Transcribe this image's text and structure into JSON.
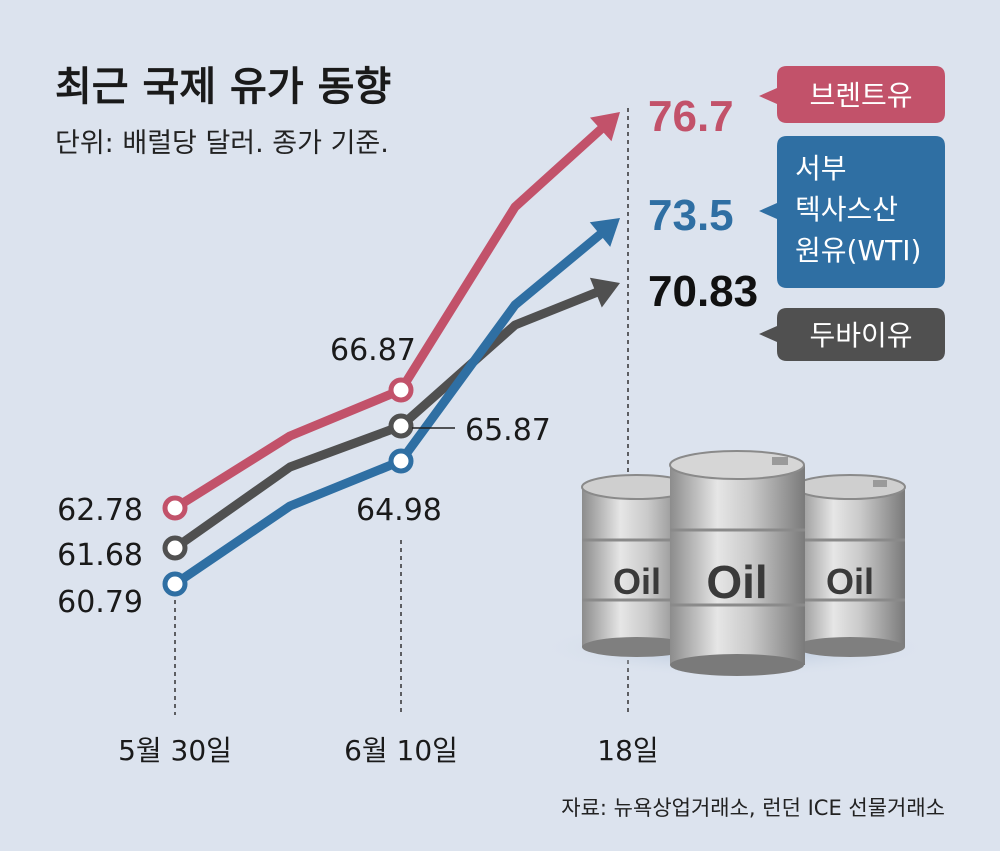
{
  "header": {
    "title": "최근 국제 유가 동향",
    "subtitle": "단위: 배럴당 달러. 종가 기준."
  },
  "colors": {
    "background": "#dce3ee",
    "brent": "#c2526a",
    "wti": "#2f6fa3",
    "dubai": "#505050"
  },
  "chart_data": {
    "type": "line",
    "x": [
      "5월 30일",
      "6월 10일",
      "18일"
    ],
    "ylim": [
      59,
      78
    ],
    "grid": false,
    "series": [
      {
        "name": "브렌트유",
        "color_key": "brent",
        "values": [
          62.78,
          66.87,
          76.7
        ],
        "labels": [
          "62.78",
          "66.87",
          "76.7"
        ]
      },
      {
        "name": "서부 텍사스산 원유(WTI)",
        "name_lines": [
          "서부",
          "텍사스산",
          "원유(WTI)"
        ],
        "color_key": "wti",
        "values": [
          60.79,
          64.98,
          73.5
        ],
        "labels": [
          "60.79",
          "64.98",
          "73.5"
        ]
      },
      {
        "name": "두바이유",
        "color_key": "dubai",
        "values": [
          61.68,
          65.87,
          70.83
        ],
        "labels": [
          "61.68",
          "65.87",
          "70.83"
        ]
      }
    ]
  },
  "illustration": {
    "barrel_label": "Oil"
  },
  "footer": {
    "source": "자료: 뉴욕상업거래소, 런던 ICE 선물거래소"
  }
}
